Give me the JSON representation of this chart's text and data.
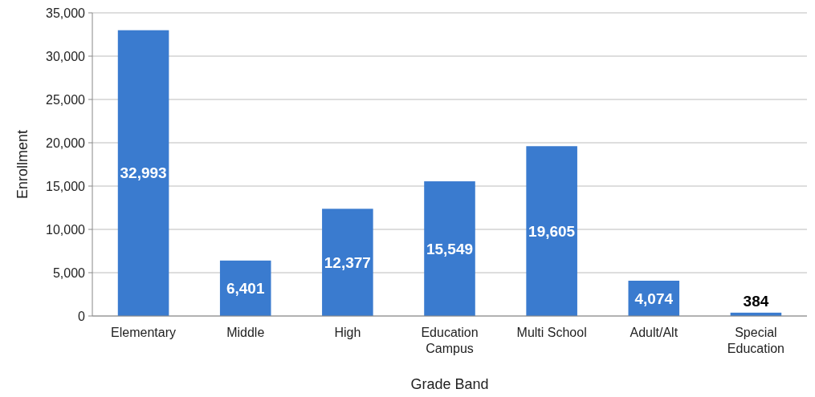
{
  "chart_data": {
    "type": "bar",
    "xlabel": "Grade Band",
    "ylabel": "Enrollment",
    "categories": [
      "Elementary",
      "Middle",
      "High",
      "Education Campus",
      "Multi School",
      "Adult/Alt",
      "Special Education"
    ],
    "values": [
      32993,
      6401,
      12377,
      15549,
      19605,
      4074,
      384
    ],
    "value_labels": [
      "32,993",
      "6,401",
      "12,377",
      "15,549",
      "19,605",
      "4,074",
      "384"
    ],
    "color": "#3a7bcf",
    "ylim": [
      0,
      35000
    ],
    "yticks": [
      {
        "value": 0,
        "label": "0"
      },
      {
        "value": 5000,
        "label": "5,000"
      },
      {
        "value": 10000,
        "label": "10,000"
      },
      {
        "value": 15000,
        "label": "15,000"
      },
      {
        "value": 20000,
        "label": "20,000"
      },
      {
        "value": 25000,
        "label": "25,000"
      },
      {
        "value": 30000,
        "label": "30,000"
      },
      {
        "value": 35000,
        "label": "35,000"
      }
    ],
    "grid": "y"
  }
}
